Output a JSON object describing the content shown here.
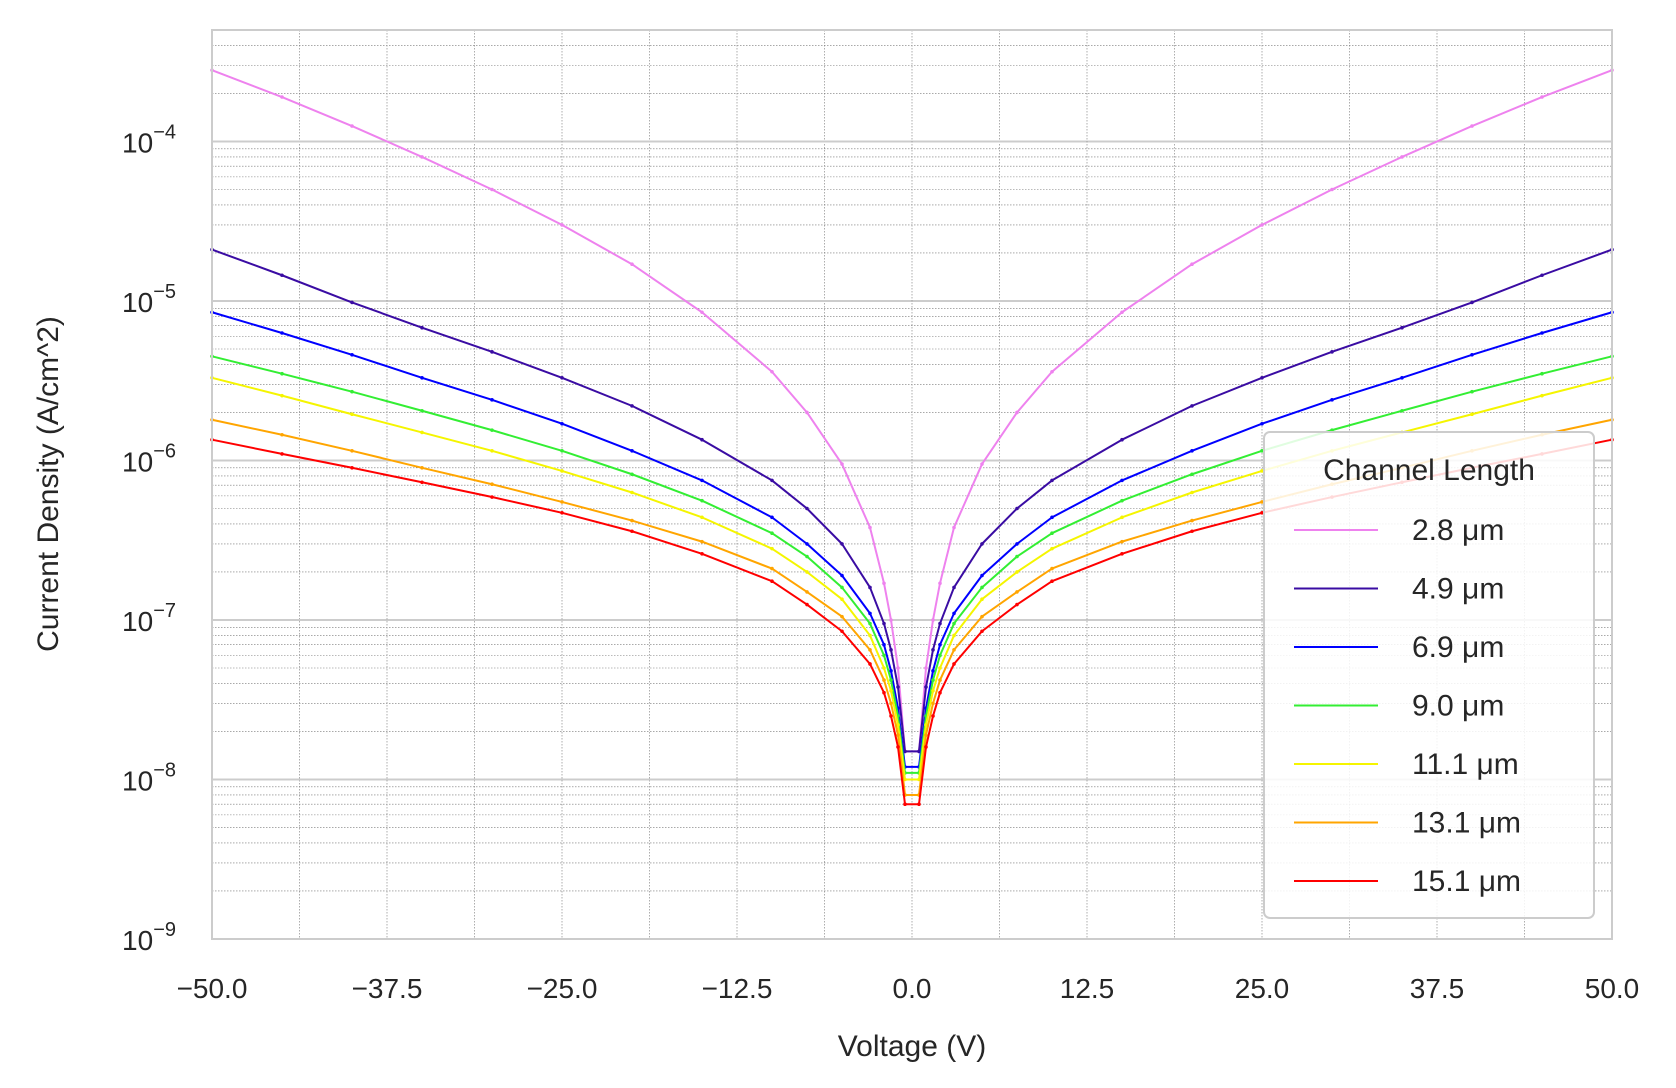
{
  "chart_data": {
    "type": "line",
    "title": "",
    "xlabel": "Voltage (V)",
    "ylabel": "Current Density (A/cm^2)",
    "xlim": [
      -50,
      50
    ],
    "ylim": [
      1e-09,
      0.0005
    ],
    "yscale": "log",
    "grid": true,
    "legend_placement": "lower-right",
    "x_tick_labels": [
      "−50.0",
      "−37.5",
      "−25.0",
      "−12.5",
      "0.0",
      "12.5",
      "25.0",
      "37.5",
      "50.0"
    ],
    "y_tick_labels": [
      {
        "base": "10",
        "exp": "−9"
      },
      {
        "base": "10",
        "exp": "−8"
      },
      {
        "base": "10",
        "exp": "−7"
      },
      {
        "base": "10",
        "exp": "−6"
      },
      {
        "base": "10",
        "exp": "−5"
      },
      {
        "base": "10",
        "exp": "−4"
      }
    ],
    "legend_title": "Channel Length",
    "x": [
      -50,
      -45,
      -40,
      -35,
      -30,
      -25,
      -20,
      -15,
      -10,
      -7.5,
      -5,
      -3,
      -2,
      -1.5,
      -1,
      -0.5,
      0.5,
      1,
      1.5,
      2,
      3,
      5,
      7.5,
      10,
      15,
      20,
      25,
      30,
      35,
      40,
      45,
      50
    ],
    "series": [
      {
        "name": "2.8 μm",
        "color": "#ee82ee",
        "values": [
          0.00028,
          0.00019,
          0.000125,
          8e-05,
          5e-05,
          3e-05,
          1.7e-05,
          8.5e-06,
          3.6e-06,
          2e-06,
          9.5e-07,
          3.8e-07,
          1.7e-07,
          1e-07,
          5e-08,
          1.5e-08,
          1.5e-08,
          5e-08,
          1e-07,
          1.7e-07,
          3.8e-07,
          9.5e-07,
          2e-06,
          3.6e-06,
          8.5e-06,
          1.7e-05,
          3e-05,
          5e-05,
          8e-05,
          0.000125,
          0.00019,
          0.00028
        ]
      },
      {
        "name": "4.9 μm",
        "color": "#3a0ca3",
        "values": [
          2.1e-05,
          1.45e-05,
          9.8e-06,
          6.8e-06,
          4.8e-06,
          3.3e-06,
          2.2e-06,
          1.35e-06,
          7.5e-07,
          5e-07,
          3e-07,
          1.6e-07,
          9.5e-08,
          6.5e-08,
          3.8e-08,
          1.5e-08,
          1.5e-08,
          3.8e-08,
          6.5e-08,
          9.5e-08,
          1.6e-07,
          3e-07,
          5e-07,
          7.5e-07,
          1.35e-06,
          2.2e-06,
          3.3e-06,
          4.8e-06,
          6.8e-06,
          9.8e-06,
          1.45e-05,
          2.1e-05
        ]
      },
      {
        "name": "6.9 μm",
        "color": "#0000ff",
        "values": [
          8.5e-06,
          6.3e-06,
          4.6e-06,
          3.3e-06,
          2.4e-06,
          1.7e-06,
          1.15e-06,
          7.5e-07,
          4.4e-07,
          3e-07,
          1.9e-07,
          1.1e-07,
          7e-08,
          4.8e-08,
          2.8e-08,
          1.2e-08,
          1.2e-08,
          2.8e-08,
          4.8e-08,
          7e-08,
          1.1e-07,
          1.9e-07,
          3e-07,
          4.4e-07,
          7.5e-07,
          1.15e-06,
          1.7e-06,
          2.4e-06,
          3.3e-06,
          4.6e-06,
          6.3e-06,
          8.5e-06
        ]
      },
      {
        "name": "9.0 μm",
        "color": "#33ee33",
        "values": [
          4.5e-06,
          3.5e-06,
          2.7e-06,
          2.05e-06,
          1.55e-06,
          1.15e-06,
          8.2e-07,
          5.6e-07,
          3.5e-07,
          2.5e-07,
          1.6e-07,
          9.5e-08,
          6e-08,
          4.2e-08,
          2.5e-08,
          1.1e-08,
          1.1e-08,
          2.5e-08,
          4.2e-08,
          6e-08,
          9.5e-08,
          1.6e-07,
          2.5e-07,
          3.5e-07,
          5.6e-07,
          8.2e-07,
          1.15e-06,
          1.55e-06,
          2.05e-06,
          2.7e-06,
          3.5e-06,
          4.5e-06
        ]
      },
      {
        "name": "11.1 μm",
        "color": "#f5f500",
        "values": [
          3.3e-06,
          2.55e-06,
          1.95e-06,
          1.5e-06,
          1.15e-06,
          8.6e-07,
          6.3e-07,
          4.4e-07,
          2.8e-07,
          2e-07,
          1.35e-07,
          8e-08,
          5e-08,
          3.6e-08,
          2.2e-08,
          1e-08,
          1e-08,
          2.2e-08,
          3.6e-08,
          5e-08,
          8e-08,
          1.35e-07,
          2e-07,
          2.8e-07,
          4.4e-07,
          6.3e-07,
          8.6e-07,
          1.15e-06,
          1.5e-06,
          1.95e-06,
          2.55e-06,
          3.3e-06
        ]
      },
      {
        "name": "13.1 μm",
        "color": "#ffa500",
        "values": [
          1.8e-06,
          1.45e-06,
          1.15e-06,
          9e-07,
          7.1e-07,
          5.5e-07,
          4.2e-07,
          3.1e-07,
          2.1e-07,
          1.5e-07,
          1.05e-07,
          6.5e-08,
          4.2e-08,
          3e-08,
          1.9e-08,
          8e-09,
          8e-09,
          1.9e-08,
          3e-08,
          4.2e-08,
          6.5e-08,
          1.05e-07,
          1.5e-07,
          2.1e-07,
          3.1e-07,
          4.2e-07,
          5.5e-07,
          7.1e-07,
          9e-07,
          1.15e-06,
          1.45e-06,
          1.8e-06
        ]
      },
      {
        "name": "15.1 μm",
        "color": "#ff0000",
        "values": [
          1.35e-06,
          1.1e-06,
          9e-07,
          7.3e-07,
          5.9e-07,
          4.7e-07,
          3.6e-07,
          2.6e-07,
          1.75e-07,
          1.25e-07,
          8.5e-08,
          5.3e-08,
          3.5e-08,
          2.5e-08,
          1.6e-08,
          7e-09,
          7e-09,
          1.6e-08,
          2.5e-08,
          3.5e-08,
          5.3e-08,
          8.5e-08,
          1.25e-07,
          1.75e-07,
          2.6e-07,
          3.6e-07,
          4.7e-07,
          5.9e-07,
          7.3e-07,
          9e-07,
          1.1e-06,
          1.35e-06
        ]
      }
    ]
  }
}
